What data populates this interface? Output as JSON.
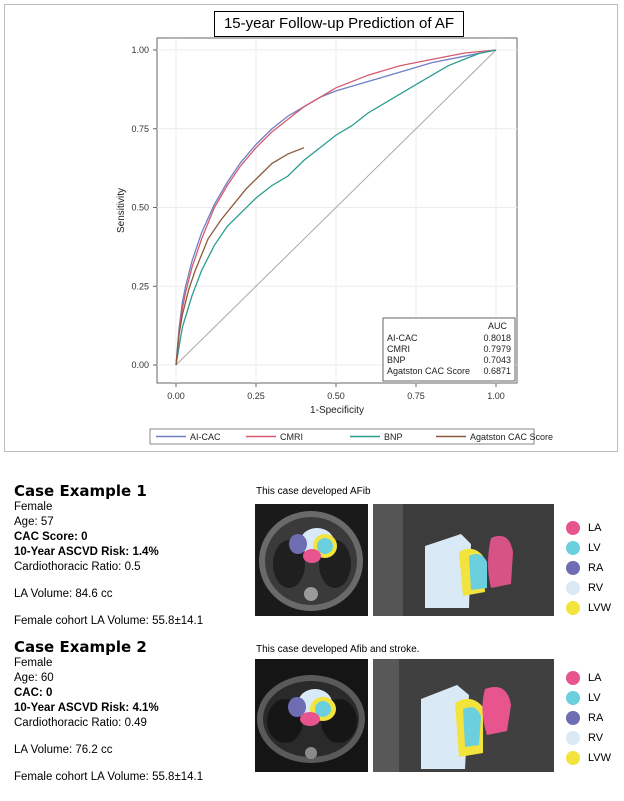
{
  "chart_data": {
    "type": "line",
    "title": "15-year Follow-up Prediction of AF",
    "xlabel": "1-Specificity",
    "ylabel": "Sensitivity",
    "xlim": [
      0,
      1
    ],
    "ylim": [
      0,
      1
    ],
    "x_ticks": [
      "0.00",
      "0.25",
      "0.50",
      "0.75",
      "1.00"
    ],
    "y_ticks": [
      "0.00",
      "0.25",
      "0.50",
      "0.75",
      "1.00"
    ],
    "grid": true,
    "legend_position": "bottom",
    "auc_table": {
      "header": "AUC",
      "rows": [
        {
          "label": "AI-CAC",
          "value": "0.8018"
        },
        {
          "label": "CMRI",
          "value": "0.7979"
        },
        {
          "label": "BNP",
          "value": "0.7043"
        },
        {
          "label": "Agatston CAC Score",
          "value": "0.6871"
        }
      ]
    },
    "series": [
      {
        "name": "AI-CAC",
        "color": "#6f7fc4",
        "points": [
          [
            0,
            0
          ],
          [
            0.01,
            0.12
          ],
          [
            0.02,
            0.2
          ],
          [
            0.03,
            0.25
          ],
          [
            0.05,
            0.33
          ],
          [
            0.08,
            0.42
          ],
          [
            0.12,
            0.51
          ],
          [
            0.16,
            0.58
          ],
          [
            0.2,
            0.64
          ],
          [
            0.25,
            0.7
          ],
          [
            0.3,
            0.75
          ],
          [
            0.35,
            0.79
          ],
          [
            0.4,
            0.82
          ],
          [
            0.45,
            0.85
          ],
          [
            0.5,
            0.87
          ],
          [
            0.6,
            0.9
          ],
          [
            0.7,
            0.93
          ],
          [
            0.8,
            0.96
          ],
          [
            0.9,
            0.98
          ],
          [
            1,
            1
          ]
        ]
      },
      {
        "name": "CMRI",
        "color": "#d55a6e",
        "points": [
          [
            0,
            0
          ],
          [
            0.01,
            0.11
          ],
          [
            0.02,
            0.18
          ],
          [
            0.03,
            0.23
          ],
          [
            0.05,
            0.31
          ],
          [
            0.08,
            0.4
          ],
          [
            0.12,
            0.5
          ],
          [
            0.16,
            0.57
          ],
          [
            0.2,
            0.63
          ],
          [
            0.25,
            0.69
          ],
          [
            0.3,
            0.74
          ],
          [
            0.35,
            0.78
          ],
          [
            0.4,
            0.82
          ],
          [
            0.45,
            0.85
          ],
          [
            0.5,
            0.88
          ],
          [
            0.6,
            0.92
          ],
          [
            0.7,
            0.95
          ],
          [
            0.8,
            0.97
          ],
          [
            0.9,
            0.99
          ],
          [
            1,
            1
          ]
        ]
      },
      {
        "name": "BNP",
        "color": "#2a9d8f",
        "points": [
          [
            0,
            0
          ],
          [
            0.02,
            0.12
          ],
          [
            0.05,
            0.22
          ],
          [
            0.08,
            0.3
          ],
          [
            0.12,
            0.38
          ],
          [
            0.16,
            0.44
          ],
          [
            0.2,
            0.48
          ],
          [
            0.25,
            0.53
          ],
          [
            0.3,
            0.57
          ],
          [
            0.35,
            0.6
          ],
          [
            0.4,
            0.65
          ],
          [
            0.45,
            0.69
          ],
          [
            0.5,
            0.73
          ],
          [
            0.55,
            0.76
          ],
          [
            0.6,
            0.8
          ],
          [
            0.65,
            0.83
          ],
          [
            0.7,
            0.86
          ],
          [
            0.75,
            0.89
          ],
          [
            0.8,
            0.92
          ],
          [
            0.85,
            0.95
          ],
          [
            0.9,
            0.97
          ],
          [
            0.95,
            0.99
          ],
          [
            1,
            1
          ]
        ]
      },
      {
        "name": "Agatston CAC Score",
        "color": "#8b5a3c",
        "points": [
          [
            0,
            0
          ],
          [
            0.01,
            0.1
          ],
          [
            0.02,
            0.16
          ],
          [
            0.04,
            0.24
          ],
          [
            0.06,
            0.3
          ],
          [
            0.08,
            0.35
          ],
          [
            0.1,
            0.4
          ],
          [
            0.14,
            0.46
          ],
          [
            0.18,
            0.51
          ],
          [
            0.22,
            0.56
          ],
          [
            0.26,
            0.6
          ],
          [
            0.3,
            0.64
          ],
          [
            0.35,
            0.67
          ],
          [
            0.4,
            0.69
          ]
        ]
      }
    ],
    "reference_line": {
      "color": "#a8a8a8",
      "points": [
        [
          0,
          0
        ],
        [
          1,
          1
        ]
      ]
    }
  },
  "case1": {
    "title": "Case Example 1",
    "note": "This case developed AFib",
    "sex": "Female",
    "age": "Age: 57",
    "cac": "CAC Score: 0",
    "ascvd": "10-Year ASCVD Risk:  1.4%",
    "ctr": "Cardiothoracic Ratio: 0.5",
    "la_volume": "LA Volume: 84.6 cc",
    "cohort": "Female cohort LA Volume: 55.8±14.1"
  },
  "case2": {
    "title": "Case Example 2",
    "note": "This case developed Afib and stroke.",
    "sex": "Female",
    "age": "Age: 60",
    "cac": "CAC: 0",
    "ascvd": "10-Year ASCVD Risk: 4.1%",
    "ctr": "Cardiothoracic Ratio: 0.49",
    "la_volume": "LA Volume: 76.2 cc",
    "cohort": "Female cohort LA Volume: 55.8±14.1"
  },
  "segment_legend": [
    {
      "label": "LA",
      "color": "#e8558e"
    },
    {
      "label": "LV",
      "color": "#6ccfdd"
    },
    {
      "label": "RA",
      "color": "#6e6cb2"
    },
    {
      "label": "RV",
      "color": "#d9e9f6"
    },
    {
      "label": "LVW",
      "color": "#f2e43c"
    }
  ]
}
